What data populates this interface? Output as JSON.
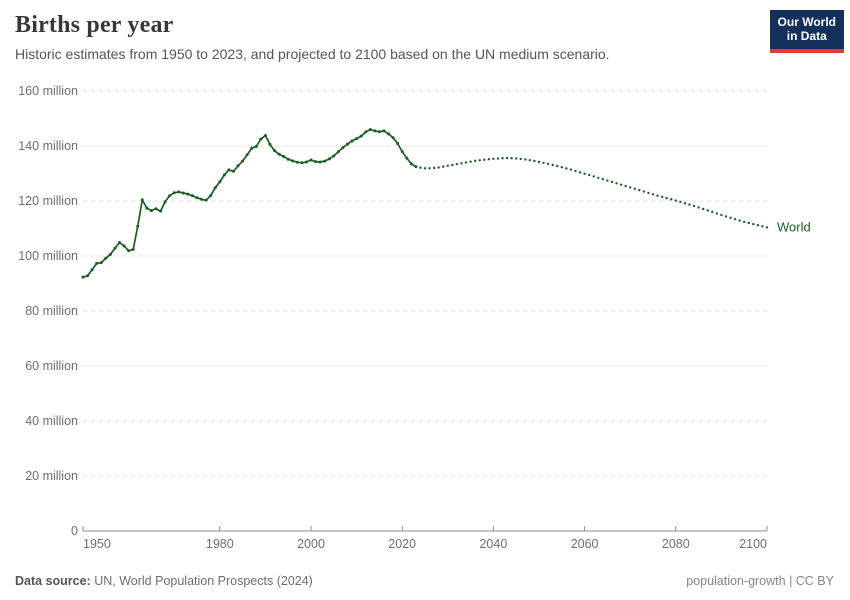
{
  "header": {
    "title": "Births per year",
    "subtitle": "Historic estimates from 1950 to 2023, and projected to 2100 based on the UN medium scenario.",
    "logo": {
      "line1": "Our World",
      "line2": "in Data"
    }
  },
  "footer": {
    "source_label": "Data source:",
    "source_value": "UN, World Population Prospects (2024)",
    "right_text": "population-growth | CC BY"
  },
  "colors": {
    "series_green": "#1f5c24",
    "axis_text": "#6e6e6e",
    "gridline": "#dedede",
    "axis_line": "#8c8c8c",
    "logo_navy": "#13305b",
    "logo_red": "#dc3d35"
  },
  "chart_data": {
    "type": "line",
    "title": "Births per year",
    "xlabel": "",
    "ylabel": "",
    "xlim": [
      1950,
      2100
    ],
    "ylim": [
      0,
      160000000
    ],
    "units": "million births per year",
    "grid": "horizontal-dashed",
    "end_label": "World",
    "x_ticks": [
      {
        "value": 1950,
        "label": "1950"
      },
      {
        "value": 1980,
        "label": "1980"
      },
      {
        "value": 2000,
        "label": "2000"
      },
      {
        "value": 2020,
        "label": "2020"
      },
      {
        "value": 2040,
        "label": "2040"
      },
      {
        "value": 2060,
        "label": "2060"
      },
      {
        "value": 2080,
        "label": "2080"
      },
      {
        "value": 2100,
        "label": "2100"
      }
    ],
    "y_ticks": [
      {
        "value": 0,
        "label": "0"
      },
      {
        "value": 20,
        "label": "20 million"
      },
      {
        "value": 40,
        "label": "40 million"
      },
      {
        "value": 60,
        "label": "60 million"
      },
      {
        "value": 80,
        "label": "80 million"
      },
      {
        "value": 100,
        "label": "100 million"
      },
      {
        "value": 120,
        "label": "120 million"
      },
      {
        "value": 140,
        "label": "140 million"
      },
      {
        "value": 160,
        "label": "160 million"
      }
    ],
    "series": [
      {
        "name": "World — historic estimates",
        "style": "solid-with-markers",
        "x_start": 1950,
        "x_step": 1,
        "values_millions": [
          92.3,
          92.8,
          95.0,
          97.3,
          97.6,
          99.2,
          100.6,
          102.8,
          104.9,
          103.7,
          101.9,
          102.4,
          110.8,
          120.4,
          117.4,
          116.5,
          117.2,
          116.3,
          119.7,
          121.9,
          123.0,
          123.3,
          122.9,
          122.5,
          121.9,
          121.2,
          120.6,
          120.3,
          122.0,
          124.8,
          127.0,
          129.5,
          131.3,
          130.8,
          132.8,
          134.5,
          136.8,
          139.2,
          139.8,
          142.5,
          143.8,
          140.6,
          138.3,
          137.0,
          136.2,
          135.2,
          134.6,
          134.1,
          133.9,
          134.2,
          134.9,
          134.3,
          134.2,
          134.5,
          135.3,
          136.4,
          137.9,
          139.4,
          140.7,
          141.8,
          142.7,
          143.6,
          145.1,
          146.0,
          145.5,
          145.2,
          145.5,
          144.4,
          143.0,
          140.9,
          138.0,
          135.6,
          133.5,
          132.5
        ]
      },
      {
        "name": "World — UN medium scenario projection",
        "style": "dotted",
        "x_start": 2023,
        "x_step": 1,
        "values_millions": [
          132.5,
          132.1,
          131.9,
          131.9,
          132.0,
          132.2,
          132.5,
          132.8,
          133.1,
          133.4,
          133.7,
          134.0,
          134.3,
          134.6,
          134.8,
          135.0,
          135.2,
          135.35,
          135.45,
          135.55,
          135.6,
          135.55,
          135.45,
          135.3,
          135.1,
          134.85,
          134.55,
          134.2,
          133.85,
          133.5,
          133.1,
          132.7,
          132.3,
          131.85,
          131.4,
          130.9,
          130.4,
          129.9,
          129.45,
          128.95,
          128.45,
          127.95,
          127.45,
          126.95,
          126.45,
          125.95,
          125.45,
          124.95,
          124.45,
          123.95,
          123.45,
          122.95,
          122.45,
          121.95,
          121.5,
          121.05,
          120.6,
          120.15,
          119.7,
          119.2,
          118.7,
          118.2,
          117.65,
          117.1,
          116.55,
          116.0,
          115.45,
          114.9,
          114.4,
          113.9,
          113.4,
          112.9,
          112.4,
          112.0,
          111.6,
          111.2,
          110.8,
          110.4
        ]
      }
    ]
  }
}
